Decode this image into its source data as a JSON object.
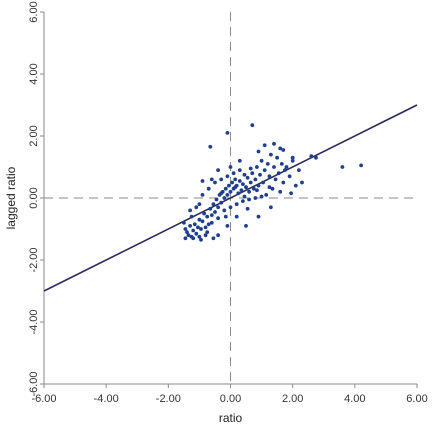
{
  "chart_data": {
    "type": "scatter",
    "xlabel": "ratio",
    "ylabel": "lagged ratio",
    "xlim": [
      -6,
      6
    ],
    "ylim": [
      -6,
      6
    ],
    "x_ticks": [
      -6,
      -4,
      -2,
      0,
      2,
      4,
      6
    ],
    "y_ticks": [
      -6,
      -4,
      -2,
      0,
      2,
      4,
      6
    ],
    "x_tick_labels": [
      "-6.00",
      "-4.00",
      "-2.00",
      "0.00",
      "2.00",
      "4.00",
      "6.00"
    ],
    "y_tick_labels": [
      "-6.00",
      "-4.00",
      "-2.00",
      "0.00",
      "2.00",
      "4.00",
      "6.00"
    ],
    "grid": false,
    "reference_lines": "dashed lines at x = 0 and y = 0",
    "colors": {
      "points": "#1f3f8f",
      "fit_line": "#2a2a5e",
      "reference": "#8a8a8a",
      "axis": "#8a8a8a"
    },
    "fit_line": {
      "x": [
        -6,
        6
      ],
      "y": [
        -3.0,
        3.0
      ]
    },
    "series": [
      {
        "points": [
          [
            -1.45,
            -1.3
          ],
          [
            -1.4,
            -1.1
          ],
          [
            -1.35,
            -1.2
          ],
          [
            -1.3,
            -0.9
          ],
          [
            -1.25,
            -1.25
          ],
          [
            -1.2,
            -1.05
          ],
          [
            -1.15,
            -0.85
          ],
          [
            -1.1,
            -1.15
          ],
          [
            -1.05,
            -0.95
          ],
          [
            -1.0,
            -0.7
          ],
          [
            -0.95,
            -1.0
          ],
          [
            -0.9,
            -0.75
          ],
          [
            -0.85,
            -0.5
          ],
          [
            -0.8,
            -1.2
          ],
          [
            -0.75,
            -0.6
          ],
          [
            -0.7,
            -0.85
          ],
          [
            -0.65,
            -0.35
          ],
          [
            -0.6,
            -0.55
          ],
          [
            -0.55,
            -0.2
          ],
          [
            -0.5,
            -0.45
          ],
          [
            -0.45,
            -0.05
          ],
          [
            -0.4,
            -0.3
          ],
          [
            -0.35,
            0.1
          ],
          [
            -0.3,
            -0.15
          ],
          [
            -0.25,
            0.2
          ],
          [
            -0.2,
            0.0
          ],
          [
            -0.15,
            0.3
          ],
          [
            -0.1,
            0.1
          ],
          [
            -0.05,
            0.4
          ],
          [
            0.0,
            0.2
          ],
          [
            0.05,
            0.5
          ],
          [
            0.1,
            0.3
          ],
          [
            0.15,
            0.6
          ],
          [
            0.2,
            0.4
          ],
          [
            0.25,
            0.15
          ],
          [
            0.3,
            0.55
          ],
          [
            0.35,
            0.25
          ],
          [
            0.4,
            0.45
          ],
          [
            0.45,
            0.05
          ],
          [
            0.5,
            0.35
          ],
          [
            0.55,
            0.65
          ],
          [
            0.6,
            0.2
          ],
          [
            0.65,
            0.5
          ],
          [
            0.7,
            0.8
          ],
          [
            0.75,
            0.3
          ],
          [
            0.8,
            0.6
          ],
          [
            0.85,
            1.0
          ],
          [
            0.9,
            0.4
          ],
          [
            0.95,
            0.75
          ],
          [
            1.0,
            1.2
          ],
          [
            1.05,
            0.5
          ],
          [
            1.1,
            0.9
          ],
          [
            1.15,
            0.1
          ],
          [
            1.2,
            1.1
          ],
          [
            1.25,
            0.7
          ],
          [
            1.3,
            1.4
          ],
          [
            1.35,
            0.3
          ],
          [
            1.4,
            1.0
          ],
          [
            1.45,
            0.6
          ],
          [
            1.5,
            1.3
          ],
          [
            1.55,
            0.8
          ],
          [
            1.6,
            0.2
          ],
          [
            1.65,
            1.1
          ],
          [
            1.7,
            0.5
          ],
          [
            1.8,
            1.0
          ],
          [
            1.9,
            0.7
          ],
          [
            2.0,
            1.2
          ],
          [
            2.1,
            0.4
          ],
          [
            2.2,
            0.9
          ],
          [
            -1.3,
            -0.4
          ],
          [
            -1.1,
            -0.3
          ],
          [
            -0.9,
            0.1
          ],
          [
            -0.7,
            0.3
          ],
          [
            -0.5,
            0.5
          ],
          [
            -0.3,
            0.6
          ],
          [
            -0.1,
            0.7
          ],
          [
            0.1,
            0.8
          ],
          [
            0.3,
            0.9
          ],
          [
            -1.2,
            -1.3
          ],
          [
            -1.0,
            -1.25
          ],
          [
            -0.8,
            -0.95
          ],
          [
            -0.6,
            -0.8
          ],
          [
            -0.4,
            -0.65
          ],
          [
            -0.2,
            -0.4
          ],
          [
            0.0,
            -0.3
          ],
          [
            0.2,
            -0.2
          ],
          [
            0.4,
            -0.1
          ],
          [
            0.6,
            -0.05
          ],
          [
            0.8,
            0.0
          ],
          [
            1.0,
            0.05
          ],
          [
            0.5,
            -0.9
          ],
          [
            0.9,
            -0.6
          ],
          [
            1.3,
            -0.3
          ],
          [
            -0.4,
            -1.2
          ],
          [
            -0.1,
            -0.9
          ],
          [
            0.2,
            -0.6
          ],
          [
            -1.5,
            -0.8
          ],
          [
            -1.45,
            -1.0
          ],
          [
            -0.6,
            0.6
          ],
          [
            -0.4,
            0.9
          ],
          [
            0.0,
            1.0
          ],
          [
            1.6,
            1.6
          ],
          [
            -0.9,
            0.55
          ],
          [
            0.3,
            1.2
          ],
          [
            0.9,
            1.5
          ],
          [
            1.1,
            1.7
          ],
          [
            1.4,
            1.75
          ],
          [
            1.7,
            1.55
          ],
          [
            2.0,
            1.3
          ],
          [
            2.3,
            0.5
          ],
          [
            2.6,
            1.35
          ],
          [
            2.75,
            1.3
          ],
          [
            3.6,
            1.0
          ],
          [
            4.2,
            1.05
          ],
          [
            -0.1,
            2.1
          ],
          [
            0.7,
            2.35
          ],
          [
            -0.65,
            1.65
          ],
          [
            -1.25,
            -0.6
          ],
          [
            -0.75,
            -1.1
          ],
          [
            -0.3,
            0.15
          ],
          [
            0.15,
            0.35
          ],
          [
            0.45,
            0.75
          ],
          [
            0.65,
            0.95
          ],
          [
            -1.0,
            -0.2
          ],
          [
            -0.15,
            -0.6
          ],
          [
            0.55,
            -0.35
          ],
          [
            1.25,
            0.35
          ],
          [
            1.75,
            0.9
          ],
          [
            1.95,
            0.15
          ],
          [
            -0.55,
            -1.3
          ],
          [
            -0.95,
            -1.35
          ],
          [
            0.85,
            0.25
          ]
        ]
      }
    ]
  }
}
